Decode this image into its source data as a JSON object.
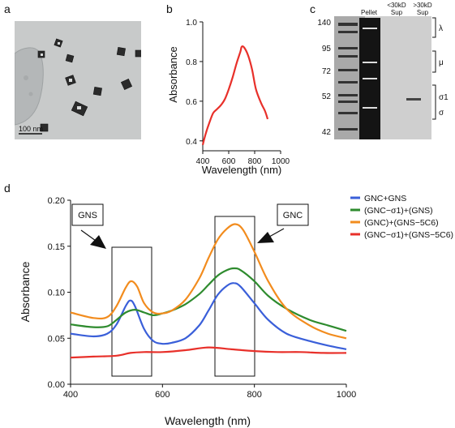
{
  "panels": {
    "a": {
      "letter": "a",
      "scale_bar_label": "100 nm"
    },
    "b": {
      "letter": "b"
    },
    "c": {
      "letter": "c",
      "lane_labels": [
        "Pellet",
        "<30kD\nSup",
        ">30kD\nSup"
      ],
      "marker_values": [
        "140",
        "95",
        "72",
        "52",
        "42"
      ],
      "band_labels": [
        "λ",
        "μ",
        "σ1",
        "σ"
      ]
    },
    "d": {
      "letter": "d",
      "box_labels": [
        "GNS",
        "GNC"
      ]
    }
  },
  "chart_data": [
    {
      "id": "b",
      "type": "line",
      "xlabel": "Wavelength (nm)",
      "ylabel": "Absorbance",
      "xlim": [
        400,
        1000
      ],
      "ylim": [
        0.35,
        1.0
      ],
      "xticks": [
        400,
        600,
        800,
        1000
      ],
      "yticks": [
        0.4,
        0.6,
        0.8,
        1.0
      ],
      "series": [
        {
          "color": "#e8302a",
          "x": [
            400,
            420,
            450,
            480,
            510,
            540,
            570,
            600,
            630,
            660,
            690,
            700,
            720,
            750,
            780,
            810,
            850,
            880,
            900
          ],
          "y": [
            0.38,
            0.43,
            0.49,
            0.54,
            0.56,
            0.58,
            0.61,
            0.66,
            0.72,
            0.79,
            0.85,
            0.875,
            0.87,
            0.83,
            0.76,
            0.66,
            0.59,
            0.55,
            0.51
          ]
        }
      ]
    },
    {
      "id": "d",
      "type": "line",
      "xlabel": "Wavelength (nm)",
      "ylabel": "Absorbance",
      "xlim": [
        400,
        1000
      ],
      "ylim": [
        0,
        0.2
      ],
      "xticks": [
        400,
        600,
        800,
        1000
      ],
      "yticks": [
        0.0,
        0.05,
        0.1,
        0.15,
        0.2
      ],
      "legend_position": "top-right",
      "series": [
        {
          "name": "GNC+GNS",
          "color": "#3a5fd9",
          "x": [
            400,
            450,
            480,
            500,
            520,
            530,
            540,
            560,
            580,
            600,
            620,
            650,
            680,
            700,
            720,
            740,
            755,
            770,
            800,
            830,
            870,
            920,
            960,
            1000
          ],
          "y": [
            0.055,
            0.052,
            0.055,
            0.065,
            0.085,
            0.091,
            0.085,
            0.06,
            0.047,
            0.044,
            0.045,
            0.05,
            0.064,
            0.08,
            0.097,
            0.107,
            0.11,
            0.106,
            0.088,
            0.07,
            0.055,
            0.047,
            0.042,
            0.038
          ]
        },
        {
          "name": "(GNC−σ1)+(GNS)",
          "color": "#2e8b2e",
          "x": [
            400,
            450,
            480,
            500,
            520,
            540,
            560,
            580,
            600,
            620,
            650,
            680,
            700,
            720,
            740,
            755,
            770,
            800,
            830,
            870,
            920,
            960,
            1000
          ],
          "y": [
            0.065,
            0.062,
            0.063,
            0.07,
            0.078,
            0.081,
            0.078,
            0.075,
            0.077,
            0.08,
            0.087,
            0.098,
            0.108,
            0.118,
            0.124,
            0.126,
            0.124,
            0.112,
            0.096,
            0.082,
            0.07,
            0.064,
            0.058
          ]
        },
        {
          "name": "(GNC)+(GNS−5C6)",
          "color": "#f28c1e",
          "x": [
            400,
            450,
            480,
            500,
            520,
            532,
            545,
            560,
            580,
            600,
            620,
            650,
            680,
            700,
            720,
            740,
            758,
            775,
            800,
            830,
            870,
            920,
            960,
            1000
          ],
          "y": [
            0.078,
            0.072,
            0.073,
            0.085,
            0.105,
            0.112,
            0.106,
            0.088,
            0.078,
            0.077,
            0.08,
            0.092,
            0.115,
            0.137,
            0.157,
            0.169,
            0.174,
            0.168,
            0.144,
            0.112,
            0.082,
            0.064,
            0.055,
            0.05
          ]
        },
        {
          "name": "(GNC−σ1)+(GNS−5C6)",
          "color": "#e8302a",
          "x": [
            400,
            450,
            500,
            530,
            560,
            600,
            650,
            700,
            750,
            800,
            850,
            900,
            950,
            1000
          ],
          "y": [
            0.029,
            0.03,
            0.031,
            0.034,
            0.035,
            0.035,
            0.037,
            0.04,
            0.038,
            0.036,
            0.035,
            0.035,
            0.034,
            0.034
          ]
        }
      ]
    }
  ]
}
